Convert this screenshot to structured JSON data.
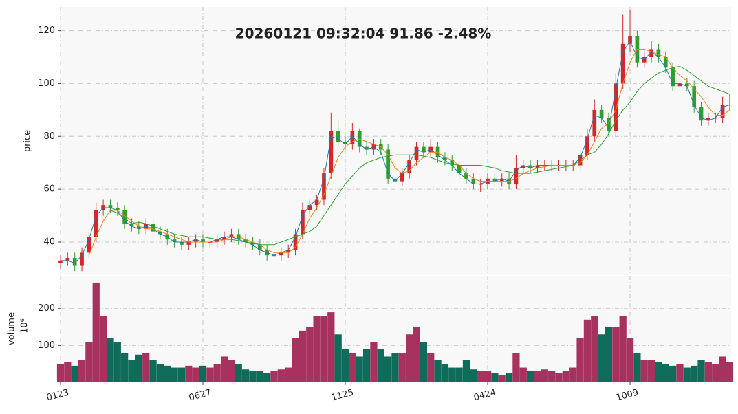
{
  "chart_data": {
    "type": "candlestick",
    "title": "20260121 09:32:04   91.86 -2.48%",
    "ylabel": "price",
    "volume_label": "volume",
    "volume_exponent": "10⁶",
    "x": [
      0,
      5,
      10,
      15,
      20,
      25,
      30,
      35,
      40,
      45,
      50,
      55,
      60,
      65,
      70,
      75,
      80,
      85,
      90,
      95,
      100,
      105,
      110,
      115,
      120,
      125,
      130,
      135,
      140,
      145,
      150,
      155,
      160,
      165,
      170,
      175,
      180,
      185,
      190,
      195,
      200,
      205,
      210,
      215,
      220,
      225,
      230,
      235,
      240,
      245,
      250,
      255,
      260,
      265,
      270,
      275,
      280,
      285,
      290,
      295,
      300,
      305,
      310,
      315,
      320,
      325,
      330,
      335,
      340,
      345,
      350,
      355,
      360,
      365,
      370,
      375,
      380,
      385,
      390,
      395,
      400,
      405,
      410,
      415,
      420,
      425,
      430,
      435,
      440,
      445,
      450,
      455,
      460,
      465,
      470
    ],
    "open": [
      32,
      33,
      34,
      31,
      36,
      42,
      52,
      54,
      53,
      52,
      47,
      46,
      45,
      47,
      44,
      43,
      41,
      40,
      39,
      40,
      41,
      40,
      40,
      41,
      42,
      43,
      41,
      40,
      39,
      37,
      35,
      35,
      36,
      37,
      43,
      52,
      54,
      56,
      66,
      82,
      78,
      77,
      82,
      76,
      75,
      77,
      75,
      64,
      63,
      66,
      71,
      76,
      74,
      76,
      72,
      71,
      69,
      66,
      64,
      62,
      62,
      64,
      63,
      64,
      62,
      68,
      69,
      68,
      69,
      69,
      69,
      69,
      69,
      69,
      73,
      80,
      90,
      87,
      82,
      100,
      115,
      118,
      108,
      110,
      113,
      110,
      106,
      99,
      100,
      99,
      91,
      86,
      87,
      87,
      92
    ],
    "high": [
      35,
      36,
      36,
      38,
      44,
      55,
      56,
      56,
      55,
      54,
      49,
      48,
      49,
      49,
      46,
      45,
      43,
      42,
      42,
      43,
      43,
      42,
      43,
      44,
      45,
      45,
      43,
      42,
      41,
      39,
      37,
      38,
      39,
      45,
      55,
      56,
      58,
      68,
      89,
      86,
      80,
      85,
      83,
      78,
      79,
      79,
      77,
      66,
      68,
      73,
      78,
      78,
      79,
      78,
      74,
      73,
      71,
      68,
      66,
      64,
      66,
      66,
      66,
      66,
      73,
      71,
      71,
      71,
      71,
      71,
      71,
      71,
      71,
      75,
      83,
      94,
      92,
      89,
      104,
      126,
      128,
      120,
      113,
      116,
      115,
      112,
      108,
      102,
      102,
      101,
      93,
      89,
      89,
      95,
      96
    ],
    "low": [
      30,
      31,
      29,
      29,
      34,
      40,
      50,
      51,
      50,
      45,
      44,
      43,
      43,
      42,
      41,
      39,
      38,
      37,
      37,
      38,
      38,
      38,
      38,
      39,
      40,
      39,
      38,
      37,
      35,
      33,
      33,
      33,
      34,
      35,
      41,
      50,
      52,
      54,
      64,
      76,
      75,
      75,
      74,
      73,
      73,
      73,
      62,
      61,
      61,
      64,
      69,
      72,
      72,
      70,
      69,
      67,
      64,
      62,
      60,
      59,
      60,
      61,
      61,
      60,
      60,
      66,
      66,
      66,
      67,
      67,
      67,
      67,
      67,
      67,
      71,
      78,
      85,
      80,
      80,
      98,
      112,
      106,
      106,
      108,
      108,
      104,
      97,
      97,
      97,
      89,
      84,
      84,
      85,
      85,
      90
    ],
    "close": [
      33,
      34,
      31,
      36,
      42,
      52,
      54,
      53,
      52,
      47,
      46,
      45,
      47,
      44,
      43,
      41,
      40,
      39,
      40,
      41,
      40,
      40,
      41,
      42,
      43,
      41,
      40,
      39,
      37,
      35,
      35,
      36,
      37,
      43,
      52,
      54,
      56,
      66,
      82,
      78,
      77,
      82,
      76,
      75,
      77,
      75,
      64,
      63,
      66,
      71,
      76,
      74,
      76,
      72,
      71,
      69,
      66,
      64,
      62,
      62,
      64,
      63,
      64,
      62,
      68,
      69,
      68,
      69,
      69,
      69,
      69,
      69,
      69,
      73,
      80,
      90,
      87,
      82,
      100,
      115,
      118,
      108,
      110,
      113,
      110,
      106,
      99,
      100,
      99,
      91,
      86,
      87,
      87,
      92,
      92
    ],
    "volume": [
      50,
      55,
      45,
      60,
      110,
      270,
      180,
      120,
      110,
      80,
      60,
      75,
      80,
      60,
      50,
      45,
      40,
      40,
      45,
      40,
      45,
      40,
      50,
      70,
      60,
      50,
      35,
      30,
      30,
      25,
      30,
      35,
      40,
      120,
      140,
      150,
      180,
      180,
      190,
      130,
      90,
      80,
      70,
      90,
      110,
      90,
      70,
      80,
      80,
      130,
      150,
      110,
      80,
      60,
      50,
      40,
      40,
      60,
      35,
      30,
      30,
      25,
      20,
      25,
      80,
      40,
      30,
      30,
      35,
      30,
      25,
      30,
      40,
      120,
      170,
      180,
      130,
      150,
      150,
      180,
      120,
      80,
      60,
      60,
      55,
      50,
      45,
      50,
      40,
      45,
      60,
      55,
      50,
      70,
      55
    ],
    "lines": [
      {
        "color": "#1f77b4",
        "values": [
          33,
          33,
          32,
          35,
          41,
          50,
          53,
          53,
          52,
          48,
          46,
          45,
          46,
          45,
          43,
          42,
          40,
          40,
          40,
          41,
          40,
          40,
          41,
          42,
          42,
          41,
          40,
          39,
          37,
          36,
          35,
          36,
          37,
          42,
          50,
          54,
          56,
          64,
          80,
          79,
          77,
          80,
          77,
          75,
          76,
          74,
          66,
          63,
          66,
          70,
          75,
          74,
          75,
          73,
          71,
          69,
          66,
          64,
          62,
          62,
          63,
          63,
          64,
          63,
          67,
          69,
          68,
          69,
          69,
          69,
          69,
          69,
          69,
          72,
          79,
          88,
          87,
          83,
          98,
          112,
          116,
          110,
          109,
          112,
          110,
          106,
          100,
          100,
          99,
          92,
          87,
          86,
          87,
          91,
          92
        ]
      },
      {
        "color": "#ff7f0e",
        "values": [
          null,
          null,
          null,
          null,
          35,
          42,
          48,
          52,
          52,
          50,
          48,
          46,
          45,
          45,
          44,
          43,
          42,
          41,
          40,
          40,
          40,
          40,
          40,
          41,
          42,
          42,
          41,
          40,
          39,
          37,
          36,
          36,
          36,
          38,
          43,
          49,
          53,
          58,
          65,
          72,
          76,
          78,
          79,
          78,
          77,
          76,
          73,
          68,
          66,
          67,
          70,
          72,
          74,
          74,
          72,
          71,
          69,
          66,
          64,
          63,
          63,
          63,
          63,
          63,
          64,
          66,
          67,
          68,
          68.5,
          69,
          69,
          69,
          69,
          70,
          73,
          78,
          83,
          85,
          90,
          100,
          108,
          113,
          113,
          112,
          111,
          110,
          106,
          103,
          101,
          98,
          95,
          91,
          88,
          88,
          90
        ]
      },
      {
        "color": "#2ca02c",
        "values": [
          null,
          null,
          null,
          null,
          null,
          null,
          null,
          52,
          51,
          49,
          47,
          47.5,
          47,
          46,
          45,
          44,
          43,
          42.5,
          42,
          42,
          42,
          41.5,
          41,
          41,
          41,
          40.5,
          40,
          39.5,
          39,
          39,
          39,
          40,
          41,
          42,
          43,
          44,
          46,
          50,
          54,
          58,
          62,
          65,
          68,
          70,
          71,
          72,
          72.5,
          73,
          73,
          73,
          73,
          72.5,
          72,
          71,
          70,
          69.5,
          69,
          69,
          69,
          69,
          68.5,
          68,
          67,
          66.5,
          66,
          66,
          66,
          66.5,
          67,
          67.5,
          68,
          68.5,
          69,
          71,
          73,
          74,
          77,
          81,
          86,
          90,
          93,
          97,
          100,
          102,
          104,
          105,
          106,
          106.5,
          105,
          103,
          101,
          99,
          98,
          97,
          96
        ]
      }
    ],
    "up_color": "#d62728",
    "down_color": "#2ca02c",
    "volume_up_color": "#a8325e",
    "volume_down_color": "#0f6b5a",
    "xlim": [
      0,
      471
    ],
    "xticks": [
      {
        "value": 0,
        "label": "0123"
      },
      {
        "value": 100,
        "label": "0627"
      },
      {
        "value": 200,
        "label": "1125"
      },
      {
        "value": 300,
        "label": "0424"
      },
      {
        "value": 400,
        "label": "1009"
      }
    ],
    "ylim": [
      27.5,
      129
    ],
    "yticks": [
      40,
      60,
      80,
      100,
      120
    ],
    "volume_ylim": [
      0,
      289
    ],
    "volume_yticks": [
      100,
      200
    ],
    "grid": true
  }
}
